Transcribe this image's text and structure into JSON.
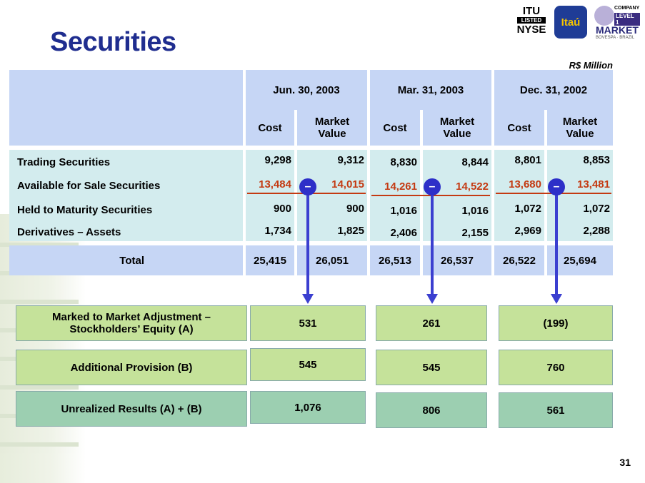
{
  "title": "Securities",
  "unit": "R$ Million",
  "page_number": "31",
  "logos": {
    "itu_line1": "ITU",
    "itu_line2": "LISTED",
    "itu_line3": "NYSE",
    "itau": "Itaú",
    "market_line1": "COMPANY",
    "market_line2": "LEVEL 1",
    "market_line3": "MARKET",
    "market_line4": "BOVESPA · BRAZIL"
  },
  "periods": [
    "Jun. 30, 2003",
    "Mar. 31, 2003",
    "Dec. 31, 2002"
  ],
  "subheaders": {
    "cost": "Cost",
    "market_value": "Market Value"
  },
  "rows": [
    {
      "label": "Trading Securities",
      "values": [
        "9,298",
        "9,312",
        "8,830",
        "8,844",
        "8,801",
        "8,853"
      ]
    },
    {
      "label": "Available for Sale Securities",
      "values": [
        "13,484",
        "14,015",
        "14,261",
        "14,522",
        "13,680",
        "13,481"
      ]
    },
    {
      "label": "Held to Maturity Securities",
      "values": [
        "900",
        "900",
        "1,016",
        "1,016",
        "1,072",
        "1,072"
      ]
    },
    {
      "label": "Derivatives – Assets",
      "values": [
        "1,734",
        "1,825",
        "2,406",
        "2,155",
        "2,969",
        "2,288"
      ]
    }
  ],
  "total": {
    "label": "Total",
    "values": [
      "25,415",
      "26,051",
      "26,513",
      "26,537",
      "26,522",
      "25,694"
    ]
  },
  "minus_sign": "–",
  "summary": [
    {
      "label": "Marked to Market Adjustment – Stockholders’ Equity (A)",
      "values": [
        "531",
        "261",
        "(199)"
      ]
    },
    {
      "label": "Additional Provision (B)",
      "values": [
        "545",
        "545",
        "760"
      ]
    },
    {
      "label": "Unrealized Results (A) + (B)",
      "values": [
        "1,076",
        "806",
        "561"
      ]
    }
  ],
  "colors": {
    "title": "#1f2d8f",
    "header_bg": "#c6d6f5",
    "body_bg": "#d3ecee",
    "highlight_red": "#c43a12",
    "arrow_blue": "#3b3fd0",
    "light_green": "#c5e29a",
    "dark_green": "#9ccfb1"
  }
}
